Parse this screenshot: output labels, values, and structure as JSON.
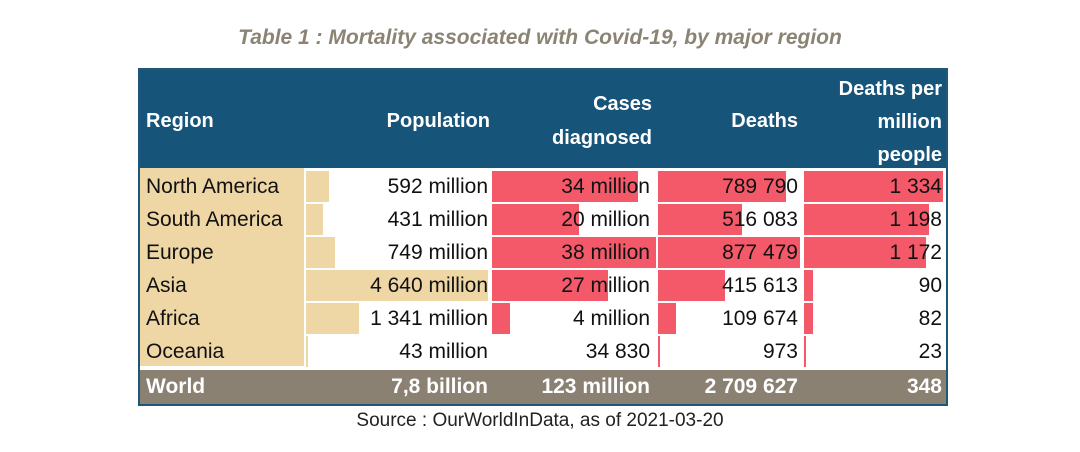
{
  "title": "Table 1 : Mortality associated with Covid-19, by major region",
  "colors": {
    "header_bg": "#17547a",
    "region_bg": "#eed6a5",
    "bar_red": "#f4596a",
    "world_bg": "#8b8173"
  },
  "headers": {
    "region": "Region",
    "population": "Population",
    "cases_line1": "Cases",
    "cases_line2": "diagnosed",
    "deaths": "Deaths",
    "dpm_line1": "Deaths per",
    "dpm_line2": "million",
    "dpm_line3": "people"
  },
  "rows": [
    {
      "region": "North America",
      "population": "592 million",
      "cases": "34 million",
      "deaths": "789 790",
      "dpm": "1 334",
      "pop_bar": 0.128,
      "cases_bar": 0.89,
      "deaths_bar": 0.9,
      "dpm_bar": 0.995
    },
    {
      "region": "South America",
      "population": "431 million",
      "cases": "20 million",
      "deaths": "516 083",
      "dpm": "1 198",
      "pop_bar": 0.093,
      "cases_bar": 0.53,
      "deaths_bar": 0.59,
      "dpm_bar": 0.89
    },
    {
      "region": "Europe",
      "population": "749 million",
      "cases": "38 million",
      "deaths": "877 479",
      "dpm": "1 172",
      "pop_bar": 0.161,
      "cases_bar": 1.0,
      "deaths_bar": 1.0,
      "dpm_bar": 0.87
    },
    {
      "region": "Asia",
      "population": "4 640 million",
      "cases": "27 million",
      "deaths": "415 613",
      "dpm": "90",
      "pop_bar": 1.0,
      "cases_bar": 0.71,
      "deaths_bar": 0.47,
      "dpm_bar": 0.067
    },
    {
      "region": "Africa",
      "population": "1 341 million",
      "cases": "4 million",
      "deaths": "109 674",
      "dpm": "82",
      "pop_bar": 0.289,
      "cases_bar": 0.11,
      "deaths_bar": 0.125,
      "dpm_bar": 0.061
    },
    {
      "region": "Oceania",
      "population": "43 million",
      "cases": "34 830",
      "deaths": "973",
      "dpm": "23",
      "pop_bar": 0.01,
      "cases_bar": 0.0,
      "deaths_bar": 0.012,
      "dpm_bar": 0.017
    }
  ],
  "world": {
    "label": "World",
    "population": "7,8 billion",
    "cases": "123 million",
    "deaths": "2 709 627",
    "dpm": "348"
  },
  "source": "Source : OurWorldInData, as of 2021-03-20"
}
